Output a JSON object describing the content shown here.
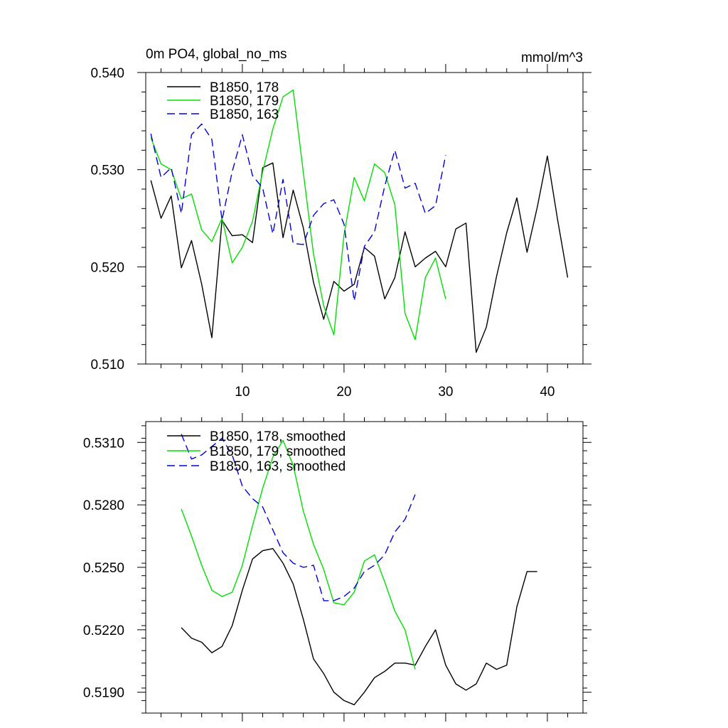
{
  "colors": {
    "series_178": "#000000",
    "series_179": "#00e000",
    "series_163": "#0000e0"
  },
  "chart_data": [
    {
      "type": "line",
      "title": "0m PO4, global_no_ms",
      "units": "mmol/m^3",
      "xlabel": "",
      "ylabel": "",
      "xlim": [
        0.5,
        43.5
      ],
      "ylim": [
        0.51,
        0.54
      ],
      "x_ticks": [
        10,
        20,
        30,
        40
      ],
      "x_tick_labels": [
        "10",
        "20",
        "30",
        "40"
      ],
      "y_ticks": [
        0.51,
        0.52,
        0.53,
        0.54
      ],
      "y_tick_labels": [
        "0.510",
        "0.520",
        "0.530",
        "0.540"
      ],
      "legend_position": "top-left",
      "series": [
        {
          "name": "B1850, 178",
          "color_key": "series_178",
          "dash": "solid",
          "x": [
            1,
            2,
            3,
            4,
            5,
            6,
            7,
            8,
            9,
            10,
            11,
            12,
            13,
            14,
            15,
            16,
            17,
            18,
            19,
            20,
            21,
            22,
            23,
            24,
            25,
            26,
            27,
            28,
            29,
            30,
            31,
            32,
            33,
            34,
            35,
            36,
            37,
            38,
            39,
            40,
            41,
            42
          ],
          "values": [
            0.5289,
            0.525,
            0.5273,
            0.5199,
            0.5227,
            0.5182,
            0.5127,
            0.5248,
            0.5232,
            0.5233,
            0.5225,
            0.5302,
            0.5307,
            0.523,
            0.5279,
            0.524,
            0.5184,
            0.5146,
            0.5185,
            0.5175,
            0.5182,
            0.522,
            0.5211,
            0.5167,
            0.5189,
            0.5236,
            0.52,
            0.5209,
            0.5216,
            0.52,
            0.5239,
            0.5245,
            0.5112,
            0.5138,
            0.519,
            0.5235,
            0.5271,
            0.5215,
            0.5261,
            0.5314,
            0.5249,
            0.5189
          ]
        },
        {
          "name": "B1850, 179",
          "color_key": "series_179",
          "dash": "solid",
          "x": [
            1,
            2,
            3,
            4,
            5,
            6,
            7,
            8,
            9,
            10,
            11,
            12,
            13,
            14,
            15,
            16,
            17,
            18,
            19,
            20,
            21,
            22,
            23,
            24,
            25,
            26,
            27,
            28,
            29,
            30
          ],
          "values": [
            0.5333,
            0.5306,
            0.53,
            0.527,
            0.5275,
            0.5238,
            0.5226,
            0.525,
            0.5204,
            0.522,
            0.5247,
            0.5298,
            0.5342,
            0.5375,
            0.5382,
            0.5297,
            0.5213,
            0.516,
            0.513,
            0.5233,
            0.5292,
            0.5268,
            0.5306,
            0.5297,
            0.5264,
            0.5152,
            0.5125,
            0.5189,
            0.5209,
            0.5167
          ]
        },
        {
          "name": "B1850, 163",
          "color_key": "series_163",
          "dash": "dashed",
          "x": [
            1,
            2,
            3,
            4,
            5,
            6,
            7,
            8,
            9,
            10,
            11,
            12,
            13,
            14,
            15,
            16,
            17,
            18,
            19,
            20,
            21,
            22,
            23,
            24,
            25,
            26,
            27,
            28,
            29,
            30
          ],
          "values": [
            0.5337,
            0.5292,
            0.5302,
            0.5255,
            0.5336,
            0.5347,
            0.5331,
            0.5248,
            0.5298,
            0.5336,
            0.5294,
            0.5281,
            0.5234,
            0.529,
            0.5224,
            0.5223,
            0.5253,
            0.5265,
            0.5269,
            0.5244,
            0.5165,
            0.5221,
            0.5236,
            0.5283,
            0.532,
            0.5281,
            0.5286,
            0.5255,
            0.5263,
            0.5315
          ]
        }
      ]
    },
    {
      "type": "line",
      "title": "",
      "xlabel": "",
      "ylabel": "",
      "xlim": [
        0.5,
        43.5
      ],
      "ylim": [
        0.518,
        0.532
      ],
      "x_ticks": [
        10,
        20,
        30,
        40
      ],
      "x_tick_labels": [],
      "y_ticks": [
        0.519,
        0.522,
        0.525,
        0.528,
        0.531
      ],
      "y_tick_labels": [
        "0.5190",
        "0.5220",
        "0.5250",
        "0.5280",
        "0.5310"
      ],
      "legend_position": "top-left",
      "series": [
        {
          "name": "B1850, 178, smoothed",
          "color_key": "series_178",
          "dash": "solid",
          "x": [
            4,
            5,
            6,
            7,
            8,
            9,
            10,
            11,
            12,
            13,
            14,
            15,
            16,
            17,
            18,
            19,
            20,
            21,
            22,
            23,
            24,
            25,
            26,
            27,
            28,
            29,
            30,
            31,
            32,
            33,
            34,
            35,
            36,
            37,
            38,
            39
          ],
          "values": [
            0.5221,
            0.5216,
            0.5214,
            0.5209,
            0.5212,
            0.5222,
            0.5239,
            0.5254,
            0.5258,
            0.5259,
            0.5252,
            0.5242,
            0.5225,
            0.5206,
            0.5199,
            0.519,
            0.5186,
            0.5184,
            0.519,
            0.5197,
            0.52,
            0.5204,
            0.5204,
            0.5203,
            0.5212,
            0.522,
            0.5203,
            0.5194,
            0.5191,
            0.5194,
            0.5204,
            0.5201,
            0.5203,
            0.5231,
            0.5248,
            0.5248
          ]
        },
        {
          "name": "B1850, 179, smoothed",
          "color_key": "series_179",
          "dash": "solid",
          "x": [
            4,
            5,
            6,
            7,
            8,
            9,
            10,
            11,
            12,
            13,
            14,
            15,
            16,
            17,
            18,
            19,
            20,
            21,
            22,
            23,
            24,
            25,
            26,
            27
          ],
          "values": [
            0.5278,
            0.5265,
            0.5251,
            0.5239,
            0.5236,
            0.5238,
            0.5251,
            0.527,
            0.5288,
            0.5303,
            0.5311,
            0.5299,
            0.5277,
            0.5261,
            0.5249,
            0.5233,
            0.5232,
            0.5238,
            0.5253,
            0.5256,
            0.5243,
            0.5229,
            0.522,
            0.5201
          ]
        },
        {
          "name": "B1850, 163, smoothed",
          "color_key": "series_163",
          "dash": "dashed",
          "x": [
            4,
            5,
            6,
            7,
            8,
            9,
            10,
            11,
            12,
            13,
            14,
            15,
            16,
            17,
            18,
            19,
            20,
            21,
            22,
            23,
            24,
            25,
            26,
            27
          ],
          "values": [
            0.5314,
            0.5302,
            0.5304,
            0.5308,
            0.5312,
            0.5304,
            0.5289,
            0.5283,
            0.5279,
            0.5268,
            0.5257,
            0.5252,
            0.525,
            0.5251,
            0.5234,
            0.5234,
            0.5236,
            0.524,
            0.5248,
            0.5251,
            0.5256,
            0.5267,
            0.5273,
            0.5285
          ]
        }
      ]
    }
  ]
}
